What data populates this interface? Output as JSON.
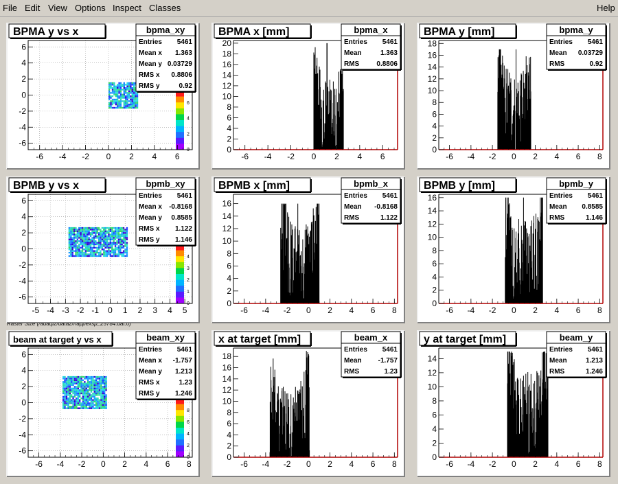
{
  "menubar": {
    "items": [
      {
        "label": "File"
      },
      {
        "label": "Edit"
      },
      {
        "label": "View"
      },
      {
        "label": "Options"
      },
      {
        "label": "Inspect"
      },
      {
        "label": "Classes"
      }
    ],
    "help": "Help"
  },
  "canvas_label": "Raster Size (/adaql2/data2/happexsp_25784.dat.0)",
  "chart_data": [
    {
      "type": "heatmap",
      "id": "bpma_xy",
      "title": "BPMA y vs x",
      "xlim": [
        -7,
        7.3
      ],
      "ylim": [
        -6.8,
        6.8
      ],
      "xticks": [
        -6,
        -4,
        -2,
        0,
        2,
        4,
        6
      ],
      "yticks": [
        -6,
        -4,
        -2,
        0,
        2,
        4,
        6
      ],
      "region": {
        "x": [
          0,
          2.5
        ],
        "y": [
          -1.6,
          1.6
        ]
      },
      "zticks": [
        0,
        2,
        4,
        6
      ],
      "stats": {
        "name": "bpma_xy",
        "rows": [
          [
            "Entries",
            "5461"
          ],
          [
            "Mean x",
            "1.363"
          ],
          [
            "Mean y",
            "0.03729"
          ],
          [
            "RMS x",
            "0.8806"
          ],
          [
            "RMS y",
            "0.92"
          ]
        ]
      }
    },
    {
      "type": "bar",
      "id": "bpma_x",
      "title": "BPMA x [mm]",
      "xlim": [
        -7,
        7.3
      ],
      "ylim": [
        0,
        20.5
      ],
      "xticks": [
        -6,
        -4,
        -2,
        0,
        2,
        4,
        6
      ],
      "yticks": [
        0,
        2,
        4,
        6,
        8,
        10,
        12,
        14,
        16,
        18,
        20
      ],
      "dist": {
        "a": 0,
        "b": 2.6,
        "edge": 14,
        "mid": 6,
        "peak": 20,
        "peak_x": 1.15
      },
      "stats": {
        "name": "bpma_x",
        "rows": [
          [
            "Entries",
            "5461"
          ],
          [
            "Mean",
            "1.363"
          ],
          [
            "RMS",
            "0.8806"
          ]
        ]
      }
    },
    {
      "type": "bar",
      "id": "bpma_y",
      "title": "BPMA y [mm]",
      "xlim": [
        -7,
        8.3
      ],
      "ylim": [
        0,
        18.5
      ],
      "xticks": [
        -6,
        -4,
        -2,
        0,
        2,
        4,
        6,
        8
      ],
      "yticks": [
        0,
        2,
        4,
        6,
        8,
        10,
        12,
        14,
        16,
        18
      ],
      "dist": {
        "a": -1.5,
        "b": 1.6,
        "edge": 14,
        "mid": 6,
        "peak": 17,
        "peak_x": 0.2
      },
      "stats": {
        "name": "bpma_y",
        "rows": [
          [
            "Entries",
            "5461"
          ],
          [
            "Mean",
            "0.03729"
          ],
          [
            "RMS",
            "0.92"
          ]
        ]
      }
    },
    {
      "type": "heatmap",
      "id": "bpmb_xy",
      "title": "BPMB y vs x",
      "xlim": [
        -5.5,
        5.5
      ],
      "ylim": [
        -6.8,
        6.8
      ],
      "xticks": [
        -5,
        -4,
        -3,
        -2,
        -1,
        0,
        1,
        2,
        3,
        4,
        5
      ],
      "yticks": [
        -6,
        -4,
        -2,
        0,
        2,
        4,
        6
      ],
      "region": {
        "x": [
          -2.8,
          1.1
        ],
        "y": [
          -0.8,
          2.7
        ]
      },
      "zticks": [
        0,
        1,
        2,
        3,
        4
      ],
      "stats": {
        "name": "bpmb_xy",
        "rows": [
          [
            "Entries",
            "5461"
          ],
          [
            "Mean x",
            "-0.8168"
          ],
          [
            "Mean y",
            "0.8585"
          ],
          [
            "RMS x",
            "1.122"
          ],
          [
            "RMS y",
            "1.146"
          ]
        ]
      }
    },
    {
      "type": "bar",
      "id": "bpmb_x",
      "title": "BPMB x [mm]",
      "xlim": [
        -7,
        8.3
      ],
      "ylim": [
        0,
        17.5
      ],
      "xticks": [
        -6,
        -4,
        -2,
        0,
        2,
        4,
        6,
        8
      ],
      "yticks": [
        0,
        2,
        4,
        6,
        8,
        10,
        12,
        14,
        16
      ],
      "dist": {
        "a": -2.6,
        "b": 1.0,
        "edge": 14,
        "mid": 5,
        "peak": 16,
        "peak_x": -1.0
      },
      "stats": {
        "name": "bpmb_x",
        "rows": [
          [
            "Entries",
            "5461"
          ],
          [
            "Mean",
            "-0.8168"
          ],
          [
            "RMS",
            "1.122"
          ]
        ]
      }
    },
    {
      "type": "bar",
      "id": "bpmb_y",
      "title": "BPMB y [mm]",
      "xlim": [
        -7,
        8.3
      ],
      "ylim": [
        0,
        16.5
      ],
      "xticks": [
        -6,
        -4,
        -2,
        0,
        2,
        4,
        6,
        8
      ],
      "yticks": [
        0,
        2,
        4,
        6,
        8,
        10,
        12,
        14,
        16
      ],
      "dist": {
        "a": -0.8,
        "b": 2.7,
        "edge": 14,
        "mid": 5,
        "peak": 16,
        "peak_x": 0.9
      },
      "stats": {
        "name": "bpmb_y",
        "rows": [
          [
            "Entries",
            "5461"
          ],
          [
            "Mean",
            "0.8585"
          ],
          [
            "RMS",
            "1.146"
          ]
        ]
      }
    },
    {
      "type": "heatmap",
      "id": "beam_xy",
      "title": "beam at target y vs x",
      "xlim": [
        -7,
        8.3
      ],
      "ylim": [
        -6.8,
        6.8
      ],
      "xticks": [
        -6,
        -4,
        -2,
        0,
        2,
        4,
        6,
        8
      ],
      "yticks": [
        -6,
        -4,
        -2,
        0,
        2,
        4,
        6
      ],
      "region": {
        "x": [
          -3.8,
          0.3
        ],
        "y": [
          -0.7,
          3.3
        ]
      },
      "zticks": [
        0,
        2,
        4,
        6,
        8
      ],
      "stats": {
        "name": "beam_xy",
        "rows": [
          [
            "Entries",
            "5461"
          ],
          [
            "Mean x",
            "-1.757"
          ],
          [
            "Mean y",
            "1.213"
          ],
          [
            "RMS x",
            "1.23"
          ],
          [
            "RMS y",
            "1.246"
          ]
        ]
      }
    },
    {
      "type": "bar",
      "id": "beam_x",
      "title": "x at target [mm]",
      "xlim": [
        -7,
        8.3
      ],
      "ylim": [
        0,
        19.5
      ],
      "xticks": [
        -6,
        -4,
        -2,
        0,
        2,
        4,
        6,
        8
      ],
      "yticks": [
        0,
        2,
        4,
        6,
        8,
        10,
        12,
        14,
        16,
        18
      ],
      "dist": {
        "a": -3.6,
        "b": 0.1,
        "edge": 14,
        "mid": 5,
        "peak": 19,
        "peak_x": -0.2
      },
      "stats": {
        "name": "beam_x",
        "rows": [
          [
            "Entries",
            "5461"
          ],
          [
            "Mean",
            "-1.757"
          ],
          [
            "RMS",
            "1.23"
          ]
        ]
      }
    },
    {
      "type": "bar",
      "id": "beam_y",
      "title": "y at target [mm]",
      "xlim": [
        -7,
        8.3
      ],
      "ylim": [
        0,
        15.5
      ],
      "xticks": [
        -6,
        -4,
        -2,
        0,
        2,
        4,
        6,
        8
      ],
      "yticks": [
        0,
        2,
        4,
        6,
        8,
        10,
        12,
        14
      ],
      "dist": {
        "a": -0.6,
        "b": 3.2,
        "edge": 13,
        "mid": 5,
        "peak": 15,
        "peak_x": 2.8
      },
      "stats": {
        "name": "beam_y",
        "rows": [
          [
            "Entries",
            "5461"
          ],
          [
            "Mean",
            "1.213"
          ],
          [
            "RMS",
            "1.246"
          ]
        ]
      }
    }
  ]
}
